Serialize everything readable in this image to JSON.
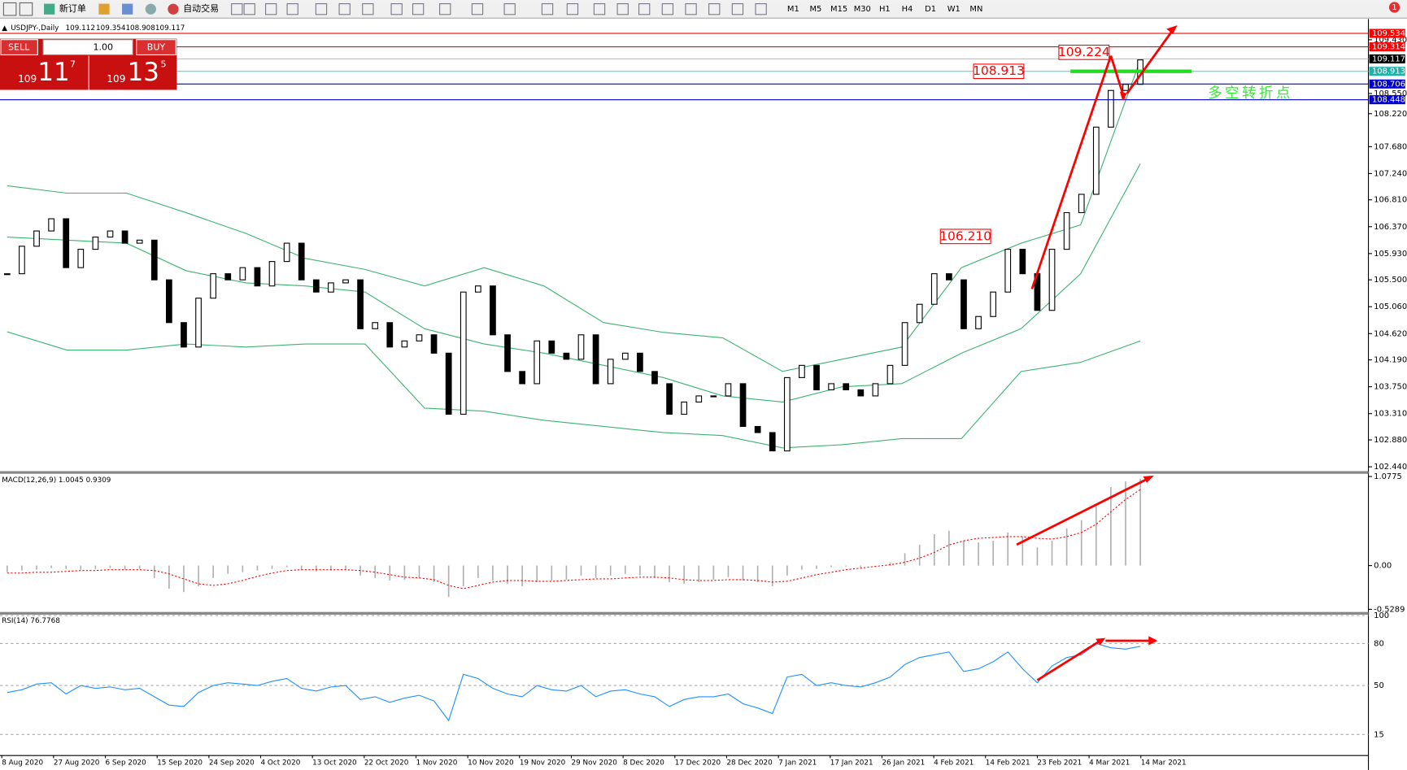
{
  "toolbar": {
    "new_order": "新订单",
    "auto_trading": "自动交易",
    "timeframes": [
      "M1",
      "M5",
      "M15",
      "M30",
      "H1",
      "H4",
      "D1",
      "W1",
      "MN"
    ],
    "notifications": "1"
  },
  "header": {
    "symbol": "USDJPY-,Daily",
    "ohlc": [
      "109.112",
      "109.354",
      "108.908",
      "109.117"
    ]
  },
  "trade_panel": {
    "sell": "SELL",
    "buy": "BUY",
    "lots": "1.00",
    "sell_big": "109",
    "sell_pips": "11",
    "sell_point": "7",
    "buy_big": "109",
    "buy_pips": "13",
    "buy_point": "5"
  },
  "chart_data": [
    {
      "type": "candlestick",
      "up_color": "#ffffff",
      "down_color": "#000000",
      "values": [
        105.6,
        106.05,
        106.3,
        106.5,
        105.7,
        106.0,
        106.2,
        106.3,
        106.1,
        106.15,
        105.5,
        104.8,
        104.4,
        105.2,
        105.6,
        105.5,
        105.7,
        105.4,
        105.8,
        106.1,
        105.5,
        105.3,
        105.45,
        105.5,
        104.7,
        104.8,
        104.4,
        104.5,
        104.6,
        104.3,
        103.3,
        105.3,
        105.4,
        104.6,
        104.0,
        103.8,
        104.5,
        104.3,
        104.2,
        104.6,
        103.8,
        104.2,
        104.3,
        104.0,
        103.8,
        103.3,
        103.5,
        103.6,
        103.6,
        103.8,
        103.1,
        103.0,
        102.7,
        103.9,
        104.1,
        103.7,
        103.8,
        103.7,
        103.6,
        103.8,
        104.1,
        104.8,
        105.1,
        105.6,
        105.5,
        104.7,
        104.9,
        105.3,
        106.0,
        105.6,
        105.0,
        106.0,
        106.6,
        106.9,
        108.0,
        108.6,
        108.7,
        109.1
      ],
      "bollinger": {
        "color": "#3cb371",
        "upper": [
          107.04,
          106.92,
          106.92,
          106.6,
          106.26,
          105.85,
          105.67,
          105.4,
          105.7,
          105.4,
          104.8,
          104.64,
          104.55,
          104.0,
          104.2,
          104.4,
          105.7,
          106.1,
          106.4,
          109.1
        ],
        "middle": [
          106.2,
          106.15,
          106.1,
          105.65,
          105.45,
          105.4,
          105.3,
          104.7,
          104.45,
          104.3,
          104.1,
          103.9,
          103.6,
          103.5,
          103.75,
          103.8,
          104.3,
          104.7,
          105.6,
          107.4
        ],
        "lower": [
          104.65,
          104.35,
          104.35,
          104.45,
          104.4,
          104.45,
          104.45,
          103.4,
          103.35,
          103.2,
          103.1,
          103.0,
          102.95,
          102.75,
          102.8,
          102.9,
          102.9,
          104.0,
          104.15,
          104.5
        ]
      },
      "ylim": [
        102.369,
        109.667
      ],
      "yticks": [
        {
          "value": 109.43,
          "label": "109.430"
        },
        {
          "value": 108.55,
          "label": "108.550"
        },
        {
          "value": 108.22,
          "label": "108.220"
        },
        {
          "value": 107.68,
          "label": "107.680"
        },
        {
          "value": 107.24,
          "label": "107.240"
        },
        {
          "value": 106.81,
          "label": "106.810"
        },
        {
          "value": 106.37,
          "label": "106.370"
        },
        {
          "value": 105.93,
          "label": "105.930"
        },
        {
          "value": 105.5,
          "label": "105.500"
        },
        {
          "value": 105.06,
          "label": "105.060"
        },
        {
          "value": 104.62,
          "label": "104.620"
        },
        {
          "value": 104.19,
          "label": "104.190"
        },
        {
          "value": 103.75,
          "label": "103.750"
        },
        {
          "value": 103.31,
          "label": "103.310"
        },
        {
          "value": 102.88,
          "label": "102.880"
        },
        {
          "value": 102.44,
          "label": "102.440"
        }
      ],
      "levels": [
        {
          "value": 109.534,
          "label": "109.534",
          "color": "#ff0000",
          "label_bg": "#ff0000"
        },
        {
          "value": 109.314,
          "label": "109.314",
          "color": "#ff0000",
          "label_bg": "#ff0000"
        },
        {
          "value": 109.117,
          "label": "109.117",
          "color": "#c0c0c0",
          "label_bg": "#000000"
        },
        {
          "value": 108.913,
          "label": "108.913",
          "color": "#40e0d0",
          "label_bg": "#20b2aa"
        },
        {
          "value": 108.706,
          "label": "108.706",
          "color": "#0000cd",
          "label_bg": "#0000cd"
        },
        {
          "value": 108.448,
          "label": "108.448",
          "color": "#0000cd",
          "label_bg": "#0000cd"
        }
      ],
      "annotations": [
        {
          "value": 109.224,
          "label": "109.224"
        },
        {
          "value": 108.913,
          "label": "108.913"
        },
        {
          "value": 106.21,
          "label": "106.210"
        }
      ],
      "note": "多空转折点",
      "x_labels": [
        "8 Aug 2020",
        "27 Aug 2020",
        "6 Sep 2020",
        "15 Sep 2020",
        "24 Sep 2020",
        "4 Oct 2020",
        "13 Oct 2020",
        "22 Oct 2020",
        "1 Nov 2020",
        "10 Nov 2020",
        "19 Nov 2020",
        "29 Nov 2020",
        "8 Dec 2020",
        "17 Dec 2020",
        "28 Dec 2020",
        "7 Jan 2021",
        "17 Jan 2021",
        "26 Jan 2021",
        "4 Feb 2021",
        "14 Feb 2021",
        "23 Feb 2021",
        "4 Mar 2021",
        "14 Mar 2021"
      ]
    },
    {
      "type": "macd",
      "title": "MACD(12,26,9) 1.0045 0.9309",
      "histogram_color": "#b0b0b0",
      "signal_color": "#ff0000",
      "histogram": [
        -0.08,
        -0.06,
        -0.05,
        -0.03,
        -0.04,
        -0.05,
        -0.04,
        -0.03,
        -0.05,
        -0.04,
        -0.15,
        -0.28,
        -0.32,
        -0.25,
        -0.15,
        -0.1,
        -0.08,
        -0.06,
        -0.04,
        -0.02,
        -0.05,
        -0.07,
        -0.06,
        -0.05,
        -0.12,
        -0.15,
        -0.18,
        -0.17,
        -0.15,
        -0.2,
        -0.38,
        -0.25,
        -0.15,
        -0.18,
        -0.22,
        -0.25,
        -0.2,
        -0.18,
        -0.17,
        -0.12,
        -0.15,
        -0.12,
        -0.1,
        -0.12,
        -0.15,
        -0.2,
        -0.22,
        -0.2,
        -0.17,
        -0.14,
        -0.18,
        -0.2,
        -0.25,
        -0.12,
        -0.05,
        -0.04,
        -0.02,
        -0.01,
        -0.02,
        0.0,
        0.04,
        0.15,
        0.25,
        0.38,
        0.42,
        0.3,
        0.28,
        0.3,
        0.4,
        0.35,
        0.22,
        0.3,
        0.45,
        0.55,
        0.75,
        0.95,
        1.02,
        1.05
      ],
      "signal": [
        -0.09,
        -0.09,
        -0.08,
        -0.08,
        -0.07,
        -0.06,
        -0.06,
        -0.05,
        -0.05,
        -0.05,
        -0.06,
        -0.1,
        -0.16,
        -0.22,
        -0.24,
        -0.22,
        -0.18,
        -0.13,
        -0.09,
        -0.06,
        -0.05,
        -0.05,
        -0.05,
        -0.05,
        -0.06,
        -0.08,
        -0.11,
        -0.14,
        -0.15,
        -0.17,
        -0.24,
        -0.28,
        -0.24,
        -0.2,
        -0.18,
        -0.18,
        -0.19,
        -0.19,
        -0.18,
        -0.17,
        -0.16,
        -0.16,
        -0.15,
        -0.14,
        -0.14,
        -0.15,
        -0.17,
        -0.18,
        -0.18,
        -0.17,
        -0.17,
        -0.18,
        -0.2,
        -0.19,
        -0.15,
        -0.11,
        -0.08,
        -0.05,
        -0.03,
        -0.01,
        0.01,
        0.04,
        0.09,
        0.16,
        0.25,
        0.3,
        0.33,
        0.34,
        0.35,
        0.35,
        0.33,
        0.32,
        0.35,
        0.4,
        0.5,
        0.65,
        0.8,
        0.92
      ],
      "ylim": [
        -0.55,
        1.11
      ],
      "yticks": [
        1.0775,
        {
          "value": 0,
          "label": "0.00"
        },
        -0.5289
      ]
    },
    {
      "type": "line",
      "title": "RSI(14) 76.7768",
      "color": "#1e90ff",
      "values": [
        45,
        47,
        51,
        52,
        44,
        50,
        48,
        49,
        47,
        48,
        42,
        36,
        35,
        45,
        50,
        52,
        51,
        50,
        53,
        55,
        48,
        46,
        49,
        50,
        40,
        42,
        38,
        41,
        43,
        39,
        25,
        58,
        55,
        48,
        44,
        42,
        50,
        47,
        46,
        50,
        42,
        46,
        47,
        44,
        42,
        35,
        40,
        42,
        42,
        44,
        37,
        34,
        30,
        56,
        58,
        50,
        52,
        50,
        49,
        52,
        56,
        65,
        70,
        72,
        74,
        60,
        62,
        67,
        74,
        62,
        52,
        64,
        70,
        72,
        80,
        77,
        76,
        78
      ],
      "ylim": [
        0,
        100
      ],
      "yticks": [
        100,
        80,
        50,
        15
      ],
      "grid": true
    }
  ]
}
